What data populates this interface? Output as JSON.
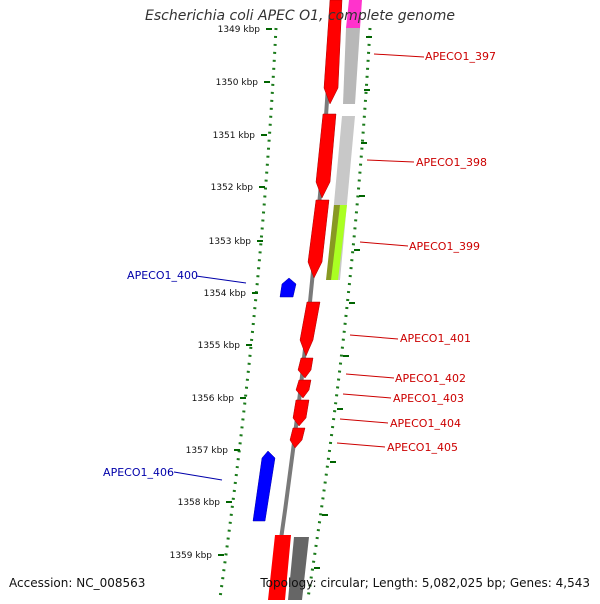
{
  "title": "Escherichia coli APEC O1, complete genome",
  "footer": {
    "accession": "Accession: NC_008563",
    "summary": "Topology: circular; Length: 5,082,025 bp; Genes: 4,543"
  },
  "colors": {
    "forward_gene": "#ff0000",
    "reverse_gene": "#0000ff",
    "forward_label": "#cc0000",
    "reverse_label": "#0000aa",
    "backbone": "#808080",
    "ticks": "#006400",
    "track_gray": "#c0c0c0",
    "track_magenta": "#ff00cc",
    "track_lime": "#aaff22"
  },
  "axis": {
    "unit": "kbp",
    "ticks": [
      "1349 kbp",
      "1350 kbp",
      "1351 kbp",
      "1352 kbp",
      "1353 kbp",
      "1354 kbp",
      "1355 kbp",
      "1356 kbp",
      "1357 kbp",
      "1358 kbp",
      "1359 kbp"
    ]
  },
  "genes": [
    {
      "name": "APECO1_397",
      "strand": "forward"
    },
    {
      "name": "APECO1_398",
      "strand": "forward"
    },
    {
      "name": "APECO1_399",
      "strand": "forward"
    },
    {
      "name": "APECO1_400",
      "strand": "reverse"
    },
    {
      "name": "APECO1_401",
      "strand": "forward"
    },
    {
      "name": "APECO1_402",
      "strand": "forward"
    },
    {
      "name": "APECO1_403",
      "strand": "forward"
    },
    {
      "name": "APECO1_404",
      "strand": "forward"
    },
    {
      "name": "APECO1_405",
      "strand": "forward"
    },
    {
      "name": "APECO1_406",
      "strand": "reverse"
    }
  ]
}
